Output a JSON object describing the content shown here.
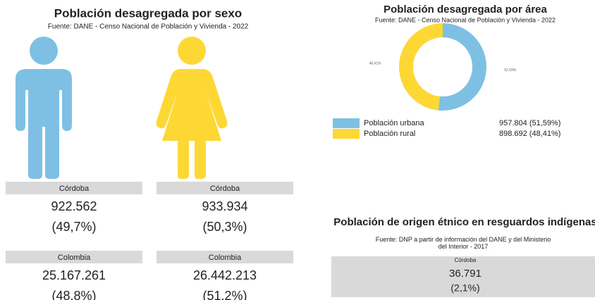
{
  "sex_panel": {
    "title": "Población desagregada por sexo",
    "subtitle": "Fuente: DANE - Censo Nacional de Población y Vivienda - 2022",
    "cards": [
      {
        "label": "Córdoba",
        "value": "922.562",
        "percent": "(49,7%)"
      },
      {
        "label": "Córdoba",
        "value": "933.934",
        "percent": "(50,3%)"
      },
      {
        "label": "Colombia",
        "value": "25.167.261",
        "percent": "(48.8%)"
      },
      {
        "label": "Colombia",
        "value": "26.442.213",
        "percent": "(51.2%)"
      }
    ]
  },
  "chart_data": {
    "type": "donut",
    "title": "Población desagregada por área",
    "subtitle": "Fuente: DANE - Censo Nacional de Población y Vivienda - 2022",
    "categories": [
      "Población urbana",
      "Población rural"
    ],
    "values": [
      51.59,
      48.41
    ],
    "value_labels": [
      "51,59%",
      "48,41%"
    ],
    "colors": [
      "#7ec0e4",
      "#fdd835"
    ],
    "legend_values": [
      "957.804 (51,59%)",
      "898.692 (48,41%)"
    ]
  },
  "ethnic_panel": {
    "title": "Población de origen étnico en resguardos indígenas",
    "subtitle": "Fuente: DNP a partir de información del DANE y del Ministerio del Interior - 2017",
    "card": {
      "label": "Córdoba",
      "value": "36.791",
      "percent": "(2,1%)"
    }
  }
}
